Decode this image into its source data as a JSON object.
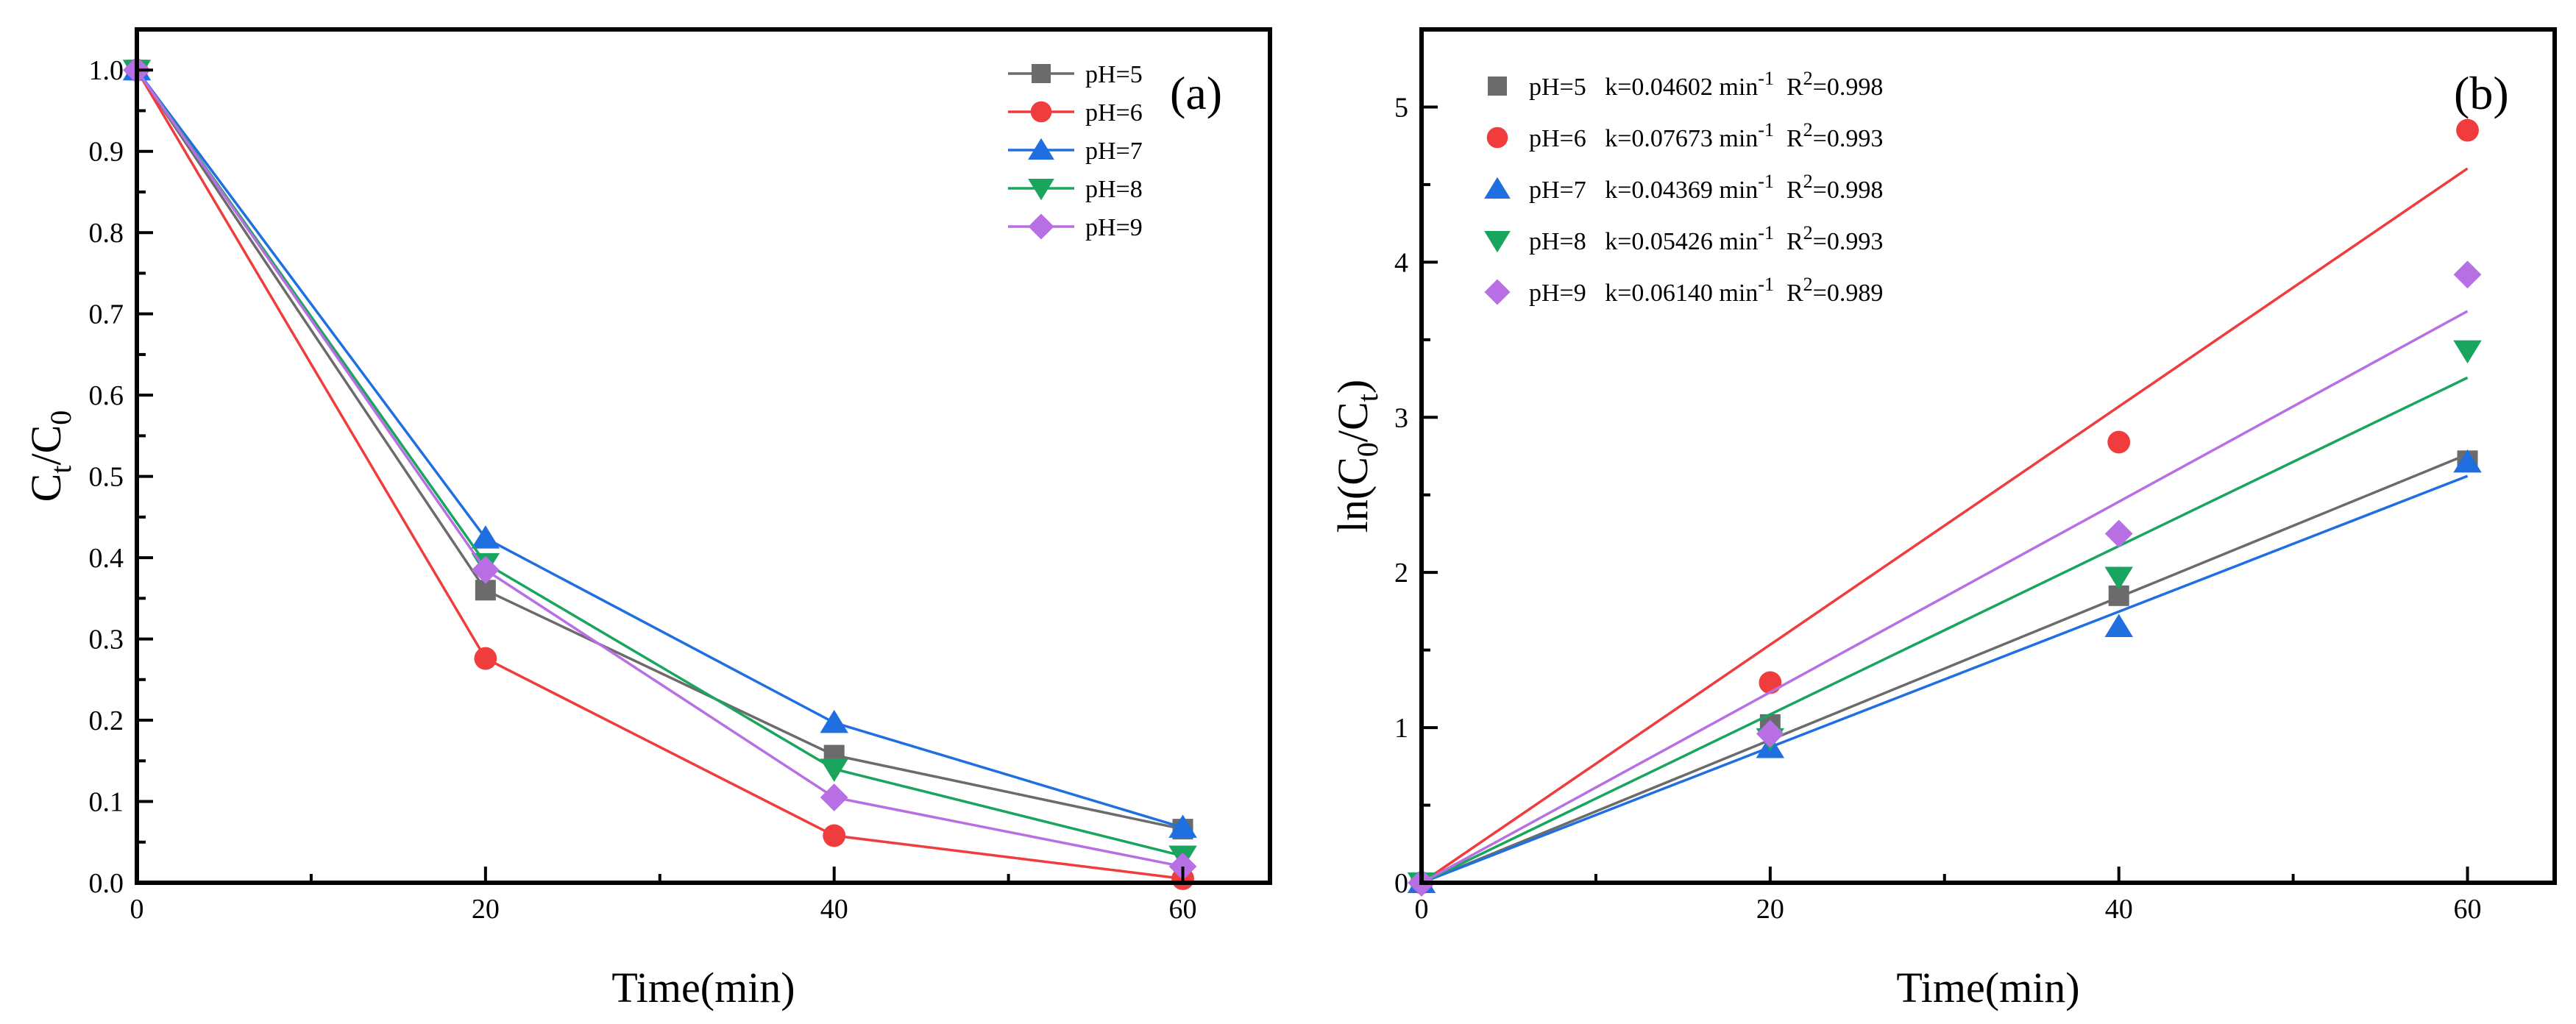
{
  "chart_data": [
    {
      "type": "line",
      "panel_label": "(a)",
      "xlabel": "Time(min)",
      "ylabel": {
        "main": "C",
        "sub1": "t",
        "sep": "/C",
        "sub2": "0"
      },
      "xlim": [
        0,
        65
      ],
      "ylim": [
        0,
        1.05
      ],
      "xticks": [
        0,
        20,
        40,
        60
      ],
      "yticks": [
        0.0,
        0.1,
        0.2,
        0.3,
        0.4,
        0.5,
        0.6,
        0.7,
        0.8,
        0.9,
        1.0
      ],
      "ytick_labels": [
        "0.0",
        "0.1",
        "0.2",
        "0.3",
        "0.4",
        "0.5",
        "0.6",
        "0.7",
        "0.8",
        "0.9",
        "1.0"
      ],
      "x": [
        0,
        20,
        40,
        60
      ],
      "legend_position": "top-right",
      "series": [
        {
          "name": "pH=5",
          "values": [
            1.0,
            0.36,
            0.157,
            0.066
          ],
          "color": "#6b6b6b",
          "marker": "square"
        },
        {
          "name": "pH=6",
          "values": [
            1.0,
            0.276,
            0.058,
            0.005
          ],
          "color": "#f03c3c",
          "marker": "circle"
        },
        {
          "name": "pH=7",
          "values": [
            1.0,
            0.424,
            0.197,
            0.068
          ],
          "color": "#1f6fe0",
          "marker": "triangle-up"
        },
        {
          "name": "pH=8",
          "values": [
            1.0,
            0.393,
            0.14,
            0.033
          ],
          "color": "#1aa55f",
          "marker": "triangle-down"
        },
        {
          "name": "pH=9",
          "values": [
            1.0,
            0.385,
            0.105,
            0.02
          ],
          "color": "#b86fe3",
          "marker": "diamond"
        }
      ]
    },
    {
      "type": "scatter",
      "panel_label": "(b)",
      "xlabel": "Time(min)",
      "ylabel": {
        "pre": "ln(C",
        "sub1": "0",
        "sep": "/C",
        "sub2": "t",
        "post": ")"
      },
      "xlim": [
        0,
        65
      ],
      "ylim": [
        0,
        5.5
      ],
      "xticks": [
        0,
        20,
        40,
        60
      ],
      "yticks": [
        0,
        1,
        2,
        3,
        4,
        5
      ],
      "ytick_labels": [
        "0",
        "1",
        "2",
        "3",
        "4",
        "5"
      ],
      "x": [
        0,
        20,
        40,
        60
      ],
      "legend_position": "top-left",
      "series": [
        {
          "name": "pH=5",
          "k": "k=0.04602 min",
          "k_exp": "-1",
          "r2_pre": "R",
          "r2_exp": "2",
          "r2_val": "=0.998",
          "values": [
            0,
            1.02,
            1.85,
            2.72
          ],
          "fit_slope": 0.04602,
          "color": "#6b6b6b",
          "marker": "square"
        },
        {
          "name": "pH=6",
          "k": "k=0.07673 min",
          "k_exp": "-1",
          "r2_pre": "R",
          "r2_exp": "2",
          "r2_val": "=0.993",
          "values": [
            0,
            1.29,
            2.84,
            4.85
          ],
          "fit_slope": 0.07673,
          "color": "#f03c3c",
          "marker": "circle"
        },
        {
          "name": "pH=7",
          "k": "k=0.04369 min",
          "k_exp": "-1",
          "r2_pre": "R",
          "r2_exp": "2",
          "r2_val": "=0.998",
          "values": [
            0,
            0.87,
            1.65,
            2.71
          ],
          "fit_slope": 0.04369,
          "color": "#1f6fe0",
          "marker": "triangle-up"
        },
        {
          "name": "pH=8",
          "k": "k=0.05426 min",
          "k_exp": "-1",
          "r2_pre": "R",
          "r2_exp": "2",
          "r2_val": "=0.993",
          "values": [
            0,
            0.93,
            1.97,
            3.43
          ],
          "fit_slope": 0.05426,
          "color": "#1aa55f",
          "marker": "triangle-down"
        },
        {
          "name": "pH=9",
          "k": "k=0.06140 min",
          "k_exp": "-1",
          "r2_pre": "R",
          "r2_exp": "2",
          "r2_val": "=0.989",
          "values": [
            0,
            0.96,
            2.25,
            3.92
          ],
          "fit_slope": 0.0614,
          "color": "#b86fe3",
          "marker": "diamond"
        }
      ]
    }
  ]
}
